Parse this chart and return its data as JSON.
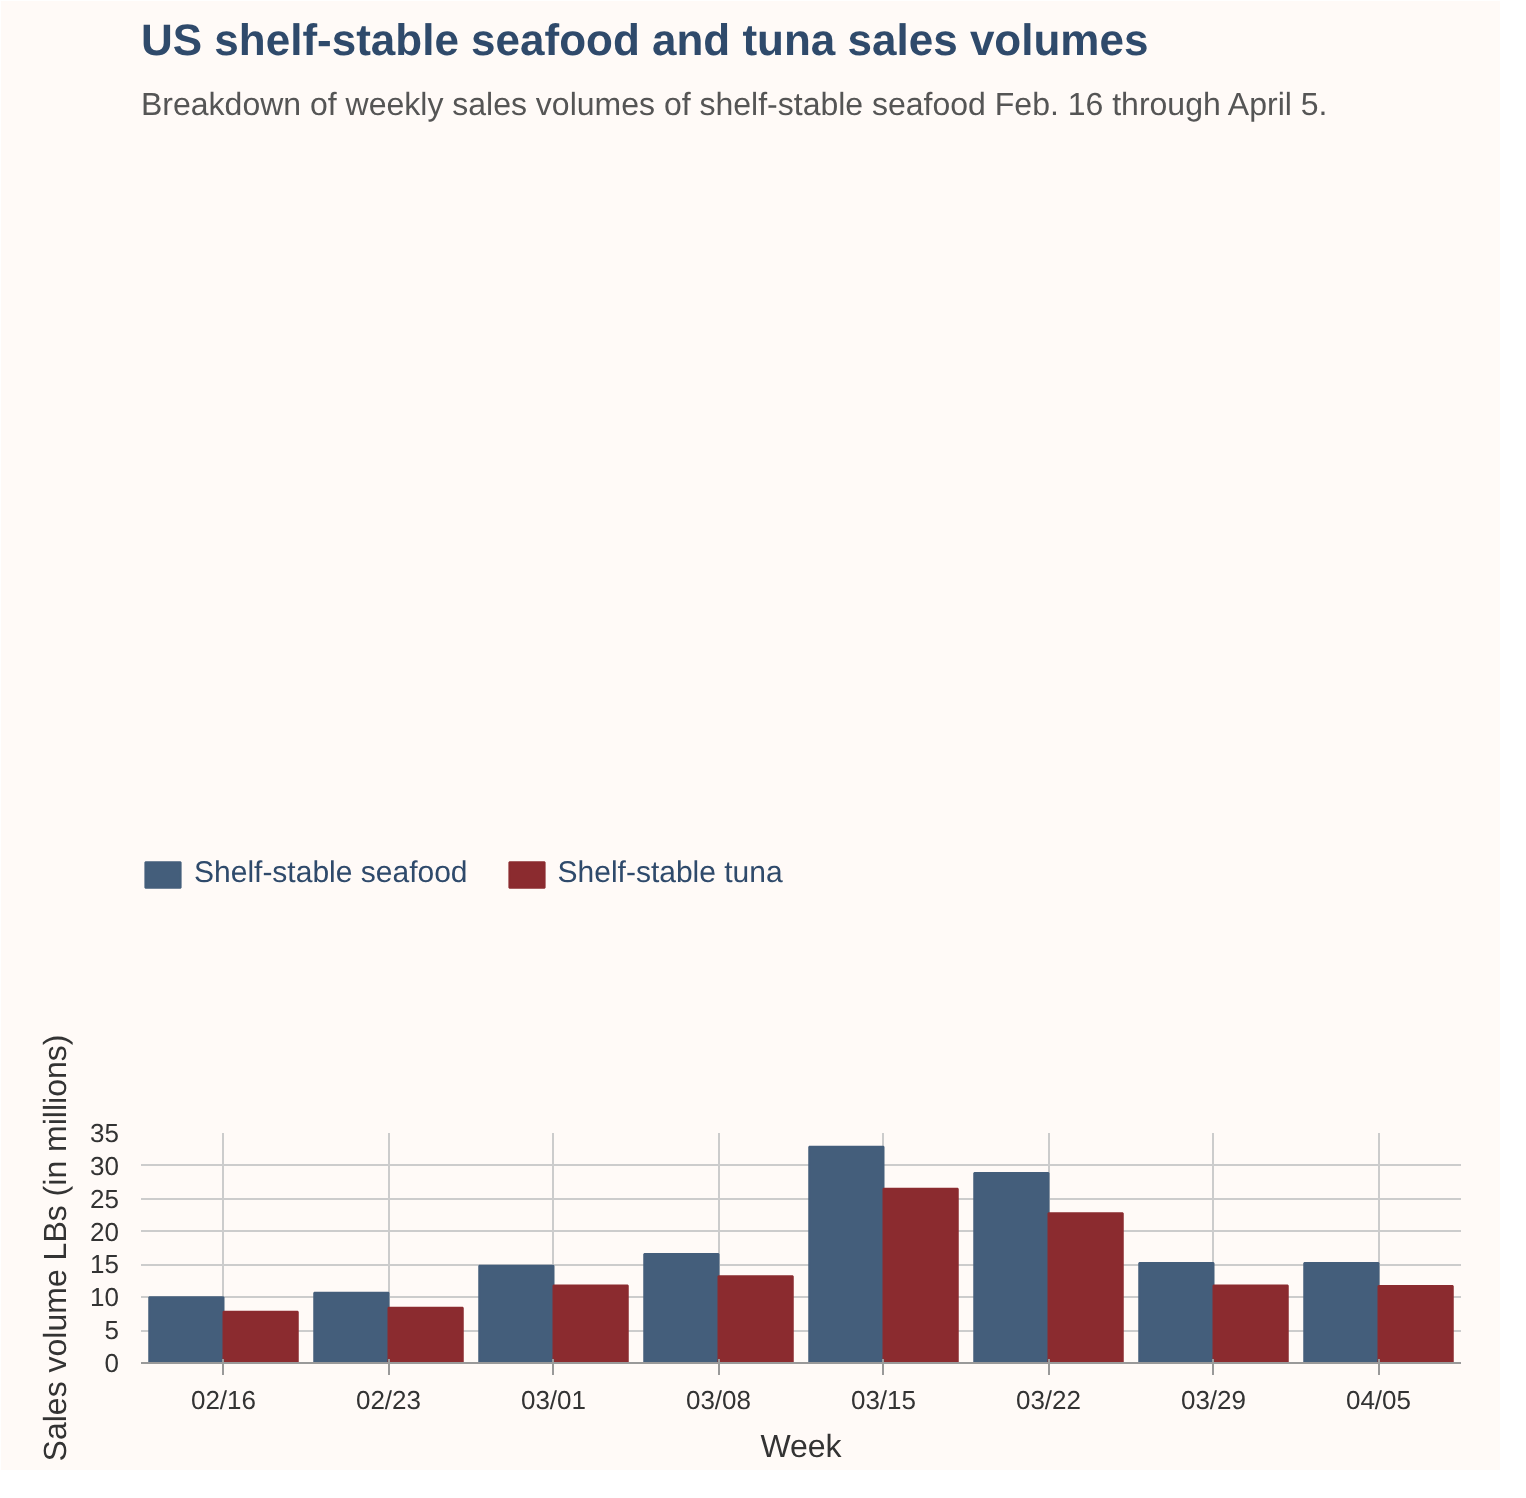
{
  "chart_data": {
    "type": "bar",
    "title": "US shelf-stable seafood and tuna sales volumes",
    "subtitle": "Breakdown of weekly sales volumes of shelf-stable seafood Feb. 16 through April 5.",
    "xlabel": "Week",
    "ylabel": "Sales volume LBs (in millions)",
    "categories": [
      "02/16",
      "02/23",
      "03/01",
      "03/08",
      "03/15",
      "03/22",
      "03/29",
      "04/05"
    ],
    "series": [
      {
        "name": "Shelf-stable seafood",
        "color": "#445e7b",
        "values": [
          10.0,
          10.7,
          14.8,
          16.6,
          32.9,
          28.9,
          15.2,
          15.2
        ]
      },
      {
        "name": "Shelf-stable tuna",
        "color": "#8b2b2f",
        "values": [
          7.8,
          8.4,
          11.8,
          13.2,
          26.5,
          22.8,
          11.8,
          11.7
        ]
      }
    ],
    "ylim": [
      0,
      35
    ],
    "yticks": [
      0,
      5,
      10,
      15,
      20,
      25,
      30,
      35
    ],
    "grid": true,
    "legend": "top left"
  }
}
